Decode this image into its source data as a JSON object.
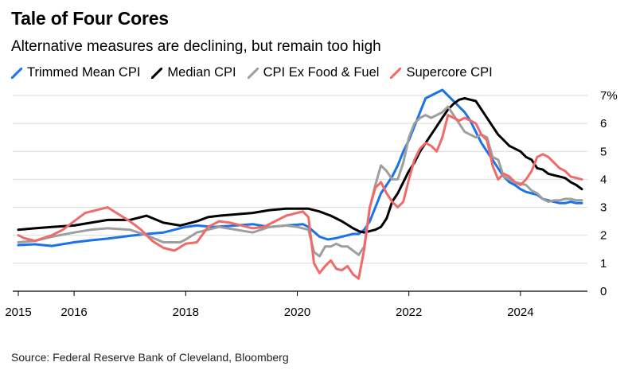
{
  "title": "Tale of Four Cores",
  "subtitle": "Alternative measures are declining, but remain too high",
  "source": "Source: Federal Reserve Bank of Cleveland, Bloomberg",
  "chart_data": {
    "type": "line",
    "xlim": [
      2014.9,
      2025.2
    ],
    "ylim": [
      0,
      7
    ],
    "x_ticks": [
      2015,
      2016,
      2018,
      2020,
      2022,
      2024
    ],
    "x_tick_labels": [
      "2015",
      "2016",
      "2018",
      "2020",
      "2022",
      "2024"
    ],
    "y_ticks": [
      0,
      1,
      2,
      3,
      4,
      5,
      6,
      7
    ],
    "y_tick_labels": [
      "0",
      "1",
      "2",
      "3",
      "4",
      "5",
      "6",
      "7%"
    ],
    "grid": true,
    "legend_position": "top-left",
    "series": [
      {
        "name": "Trimmed Mean CPI",
        "color": "#1a73e8",
        "points": [
          [
            2015.0,
            1.65
          ],
          [
            2015.3,
            1.68
          ],
          [
            2015.6,
            1.62
          ],
          [
            2016.0,
            1.75
          ],
          [
            2016.3,
            1.82
          ],
          [
            2016.6,
            1.88
          ],
          [
            2017.0,
            1.98
          ],
          [
            2017.3,
            2.05
          ],
          [
            2017.6,
            2.1
          ],
          [
            2017.8,
            2.2
          ],
          [
            2018.0,
            2.3
          ],
          [
            2018.2,
            2.35
          ],
          [
            2018.5,
            2.3
          ],
          [
            2018.9,
            2.35
          ],
          [
            2019.2,
            2.4
          ],
          [
            2019.5,
            2.3
          ],
          [
            2019.8,
            2.35
          ],
          [
            2020.0,
            2.38
          ],
          [
            2020.1,
            2.4
          ],
          [
            2020.2,
            2.3
          ],
          [
            2020.4,
            1.95
          ],
          [
            2020.55,
            1.85
          ],
          [
            2020.7,
            1.9
          ],
          [
            2020.9,
            2.0
          ],
          [
            2021.0,
            2.05
          ],
          [
            2021.1,
            2.05
          ],
          [
            2021.2,
            2.2
          ],
          [
            2021.3,
            2.5
          ],
          [
            2021.4,
            3.0
          ],
          [
            2021.5,
            3.5
          ],
          [
            2021.6,
            3.8
          ],
          [
            2021.7,
            4.1
          ],
          [
            2021.8,
            4.5
          ],
          [
            2021.9,
            5.0
          ],
          [
            2022.0,
            5.4
          ],
          [
            2022.1,
            5.9
          ],
          [
            2022.2,
            6.4
          ],
          [
            2022.3,
            6.9
          ],
          [
            2022.4,
            7.0
          ],
          [
            2022.5,
            7.1
          ],
          [
            2022.6,
            7.2
          ],
          [
            2022.7,
            7.0
          ],
          [
            2022.8,
            6.8
          ],
          [
            2022.9,
            6.6
          ],
          [
            2023.0,
            6.4
          ],
          [
            2023.1,
            6.1
          ],
          [
            2023.2,
            5.7
          ],
          [
            2023.3,
            5.3
          ],
          [
            2023.4,
            5.0
          ],
          [
            2023.5,
            4.7
          ],
          [
            2023.6,
            4.4
          ],
          [
            2023.7,
            4.1
          ],
          [
            2023.8,
            3.9
          ],
          [
            2023.9,
            3.8
          ],
          [
            2024.0,
            3.65
          ],
          [
            2024.1,
            3.55
          ],
          [
            2024.2,
            3.5
          ],
          [
            2024.3,
            3.45
          ],
          [
            2024.4,
            3.3
          ],
          [
            2024.5,
            3.25
          ],
          [
            2024.6,
            3.2
          ],
          [
            2024.7,
            3.15
          ],
          [
            2024.8,
            3.15
          ],
          [
            2024.9,
            3.2
          ],
          [
            2025.0,
            3.15
          ],
          [
            2025.1,
            3.15
          ]
        ]
      },
      {
        "name": "Median CPI",
        "color": "#000000",
        "points": [
          [
            2015.0,
            2.2
          ],
          [
            2015.3,
            2.25
          ],
          [
            2015.6,
            2.3
          ],
          [
            2016.0,
            2.35
          ],
          [
            2016.3,
            2.45
          ],
          [
            2016.6,
            2.55
          ],
          [
            2017.0,
            2.55
          ],
          [
            2017.3,
            2.7
          ],
          [
            2017.6,
            2.45
          ],
          [
            2017.9,
            2.35
          ],
          [
            2018.0,
            2.4
          ],
          [
            2018.2,
            2.5
          ],
          [
            2018.4,
            2.65
          ],
          [
            2018.6,
            2.7
          ],
          [
            2018.9,
            2.75
          ],
          [
            2019.2,
            2.8
          ],
          [
            2019.5,
            2.9
          ],
          [
            2019.8,
            2.95
          ],
          [
            2020.0,
            2.95
          ],
          [
            2020.2,
            2.95
          ],
          [
            2020.4,
            2.85
          ],
          [
            2020.6,
            2.7
          ],
          [
            2020.8,
            2.5
          ],
          [
            2021.0,
            2.25
          ],
          [
            2021.1,
            2.15
          ],
          [
            2021.2,
            2.1
          ],
          [
            2021.3,
            2.15
          ],
          [
            2021.4,
            2.2
          ],
          [
            2021.5,
            2.3
          ],
          [
            2021.6,
            2.6
          ],
          [
            2021.7,
            3.2
          ],
          [
            2021.8,
            3.5
          ],
          [
            2021.9,
            3.9
          ],
          [
            2022.0,
            4.3
          ],
          [
            2022.1,
            4.6
          ],
          [
            2022.2,
            5.0
          ],
          [
            2022.3,
            5.3
          ],
          [
            2022.4,
            5.6
          ],
          [
            2022.5,
            5.9
          ],
          [
            2022.6,
            6.2
          ],
          [
            2022.7,
            6.5
          ],
          [
            2022.8,
            6.7
          ],
          [
            2022.9,
            6.85
          ],
          [
            2023.0,
            6.9
          ],
          [
            2023.1,
            6.85
          ],
          [
            2023.2,
            6.8
          ],
          [
            2023.3,
            6.5
          ],
          [
            2023.4,
            6.2
          ],
          [
            2023.5,
            5.9
          ],
          [
            2023.6,
            5.6
          ],
          [
            2023.7,
            5.4
          ],
          [
            2023.8,
            5.2
          ],
          [
            2023.9,
            5.1
          ],
          [
            2024.0,
            5.0
          ],
          [
            2024.1,
            4.8
          ],
          [
            2024.2,
            4.7
          ],
          [
            2024.3,
            4.4
          ],
          [
            2024.4,
            4.35
          ],
          [
            2024.5,
            4.2
          ],
          [
            2024.6,
            4.15
          ],
          [
            2024.7,
            4.1
          ],
          [
            2024.8,
            4.05
          ],
          [
            2024.9,
            3.9
          ],
          [
            2025.0,
            3.8
          ],
          [
            2025.1,
            3.65
          ]
        ]
      },
      {
        "name": "CPI Ex Food & Fuel",
        "color": "#9e9e9e",
        "points": [
          [
            2015.0,
            1.75
          ],
          [
            2015.3,
            1.8
          ],
          [
            2015.6,
            1.95
          ],
          [
            2016.0,
            2.1
          ],
          [
            2016.3,
            2.2
          ],
          [
            2016.6,
            2.25
          ],
          [
            2017.0,
            2.2
          ],
          [
            2017.3,
            2.0
          ],
          [
            2017.6,
            1.75
          ],
          [
            2017.9,
            1.75
          ],
          [
            2018.0,
            1.85
          ],
          [
            2018.2,
            2.1
          ],
          [
            2018.4,
            2.2
          ],
          [
            2018.6,
            2.3
          ],
          [
            2018.9,
            2.2
          ],
          [
            2019.2,
            2.1
          ],
          [
            2019.5,
            2.3
          ],
          [
            2019.8,
            2.35
          ],
          [
            2020.0,
            2.3
          ],
          [
            2020.2,
            2.2
          ],
          [
            2020.3,
            1.4
          ],
          [
            2020.4,
            1.25
          ],
          [
            2020.5,
            1.6
          ],
          [
            2020.6,
            1.6
          ],
          [
            2020.7,
            1.7
          ],
          [
            2020.8,
            1.6
          ],
          [
            2020.9,
            1.6
          ],
          [
            2021.0,
            1.45
          ],
          [
            2021.1,
            1.3
          ],
          [
            2021.2,
            1.6
          ],
          [
            2021.3,
            3.0
          ],
          [
            2021.4,
            3.8
          ],
          [
            2021.5,
            4.5
          ],
          [
            2021.6,
            4.3
          ],
          [
            2021.7,
            4.0
          ],
          [
            2021.8,
            4.0
          ],
          [
            2021.9,
            4.6
          ],
          [
            2022.0,
            5.5
          ],
          [
            2022.1,
            6.0
          ],
          [
            2022.2,
            6.2
          ],
          [
            2022.3,
            6.3
          ],
          [
            2022.4,
            6.2
          ],
          [
            2022.5,
            6.3
          ],
          [
            2022.6,
            6.4
          ],
          [
            2022.7,
            6.6
          ],
          [
            2022.8,
            6.3
          ],
          [
            2022.9,
            6.0
          ],
          [
            2023.0,
            5.7
          ],
          [
            2023.1,
            5.6
          ],
          [
            2023.2,
            5.5
          ],
          [
            2023.3,
            5.6
          ],
          [
            2023.4,
            5.5
          ],
          [
            2023.5,
            4.8
          ],
          [
            2023.6,
            4.7
          ],
          [
            2023.7,
            4.1
          ],
          [
            2023.8,
            4.0
          ],
          [
            2023.9,
            3.9
          ],
          [
            2024.0,
            3.85
          ],
          [
            2024.1,
            3.8
          ],
          [
            2024.2,
            3.6
          ],
          [
            2024.3,
            3.5
          ],
          [
            2024.4,
            3.3
          ],
          [
            2024.5,
            3.2
          ],
          [
            2024.6,
            3.25
          ],
          [
            2024.7,
            3.25
          ],
          [
            2024.8,
            3.3
          ],
          [
            2024.9,
            3.3
          ],
          [
            2025.0,
            3.25
          ],
          [
            2025.1,
            3.25
          ]
        ]
      },
      {
        "name": "Supercore CPI",
        "color": "#f06a6a",
        "points": [
          [
            2015.0,
            2.0
          ],
          [
            2015.1,
            1.9
          ],
          [
            2015.3,
            1.8
          ],
          [
            2015.6,
            2.0
          ],
          [
            2015.8,
            2.2
          ],
          [
            2016.0,
            2.5
          ],
          [
            2016.2,
            2.8
          ],
          [
            2016.4,
            2.9
          ],
          [
            2016.6,
            3.0
          ],
          [
            2016.8,
            2.75
          ],
          [
            2017.0,
            2.5
          ],
          [
            2017.2,
            2.2
          ],
          [
            2017.4,
            1.8
          ],
          [
            2017.6,
            1.55
          ],
          [
            2017.8,
            1.45
          ],
          [
            2018.0,
            1.7
          ],
          [
            2018.2,
            1.75
          ],
          [
            2018.4,
            2.3
          ],
          [
            2018.6,
            2.5
          ],
          [
            2018.8,
            2.45
          ],
          [
            2019.0,
            2.35
          ],
          [
            2019.2,
            2.25
          ],
          [
            2019.4,
            2.3
          ],
          [
            2019.6,
            2.5
          ],
          [
            2019.8,
            2.7
          ],
          [
            2020.0,
            2.8
          ],
          [
            2020.1,
            2.85
          ],
          [
            2020.2,
            2.65
          ],
          [
            2020.3,
            1.0
          ],
          [
            2020.4,
            0.65
          ],
          [
            2020.5,
            0.9
          ],
          [
            2020.6,
            1.1
          ],
          [
            2020.7,
            0.8
          ],
          [
            2020.8,
            0.75
          ],
          [
            2020.9,
            0.9
          ],
          [
            2021.0,
            0.6
          ],
          [
            2021.1,
            0.45
          ],
          [
            2021.2,
            1.5
          ],
          [
            2021.3,
            3.0
          ],
          [
            2021.4,
            3.7
          ],
          [
            2021.5,
            3.9
          ],
          [
            2021.6,
            3.5
          ],
          [
            2021.7,
            3.2
          ],
          [
            2021.8,
            3.0
          ],
          [
            2021.9,
            3.2
          ],
          [
            2022.0,
            4.0
          ],
          [
            2022.1,
            4.7
          ],
          [
            2022.2,
            5.1
          ],
          [
            2022.3,
            5.3
          ],
          [
            2022.4,
            5.2
          ],
          [
            2022.5,
            5.0
          ],
          [
            2022.6,
            5.5
          ],
          [
            2022.7,
            6.3
          ],
          [
            2022.8,
            6.2
          ],
          [
            2022.9,
            6.1
          ],
          [
            2023.0,
            6.2
          ],
          [
            2023.1,
            6.1
          ],
          [
            2023.2,
            6.0
          ],
          [
            2023.3,
            5.6
          ],
          [
            2023.4,
            5.4
          ],
          [
            2023.5,
            4.5
          ],
          [
            2023.6,
            4.0
          ],
          [
            2023.7,
            4.2
          ],
          [
            2023.8,
            4.1
          ],
          [
            2023.9,
            3.9
          ],
          [
            2024.0,
            3.8
          ],
          [
            2024.1,
            4.0
          ],
          [
            2024.2,
            4.3
          ],
          [
            2024.3,
            4.8
          ],
          [
            2024.4,
            4.9
          ],
          [
            2024.5,
            4.8
          ],
          [
            2024.6,
            4.6
          ],
          [
            2024.7,
            4.4
          ],
          [
            2024.8,
            4.3
          ],
          [
            2024.9,
            4.1
          ],
          [
            2025.0,
            4.05
          ],
          [
            2025.1,
            4.0
          ]
        ]
      }
    ]
  }
}
